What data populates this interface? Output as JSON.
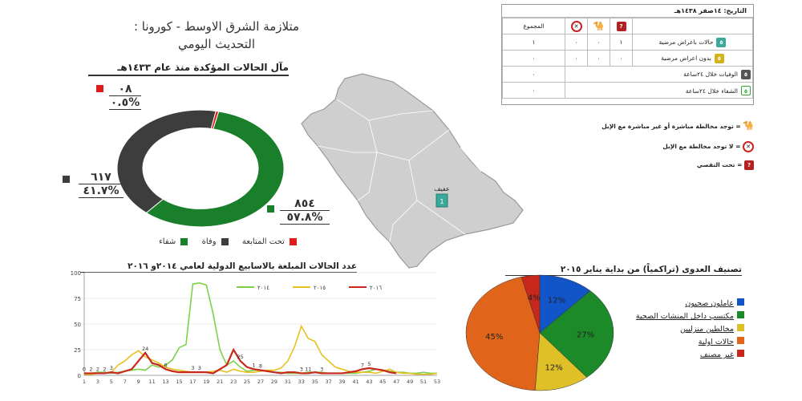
{
  "header": {
    "title_line1": "متلازمة الشرق الاوسط - كورونا :",
    "title_line2": "التحديث اليومي"
  },
  "donut": {
    "title": "مآل الحالات المؤكدة منذ عام ١٤٣٣هـ",
    "recovered": {
      "count": "٨٥٤",
      "percent": "٥٧.٨%",
      "color": "#1a7f2a"
    },
    "deaths": {
      "count": "٦١٧",
      "percent": "٤١.٧%",
      "color": "#3d3d3d"
    },
    "followup": {
      "count": "٠٨",
      "percent": "٠.٥%",
      "color": "#e01b1b"
    },
    "legend": [
      "شفاء",
      "وفاة",
      "تحت المتابعة"
    ]
  },
  "table": {
    "date_label": "التاريخ: ١٤صفر ١٤٣٨هـ",
    "total_header": "المجموع",
    "rows": [
      {
        "label": "حالات باعراض مرضية",
        "icon_color": "#3aa89b",
        "icon_text": "٥",
        "q": "١",
        "camel": "٠",
        "nocamel": "٠",
        "total": "١"
      },
      {
        "label": "بدون اعراض مرضية",
        "icon_color": "#d4b21a",
        "icon_text": "٥",
        "q": "٠",
        "camel": "٠",
        "nocamel": "٠",
        "total": "٠"
      },
      {
        "label": "الوفيات خلال ٢٤ساعة",
        "icon_color": "#555555",
        "icon_text": "٥",
        "total": "٠"
      },
      {
        "label": "الشفاء خلال ٢٤ساعة",
        "icon_color": "#ffffff",
        "icon_text": "٥",
        "total": "٠"
      }
    ]
  },
  "key": {
    "camel": "= توجد مخالطة مباشرة أو غير مباشرة مع الإبل",
    "nocamel": "= لا توجد مخالطة مع الإبل",
    "investigation": "= تحت التقصي"
  },
  "map": {
    "city_label": "عفيف",
    "city_count": "1"
  },
  "chart_data": [
    {
      "type": "donut",
      "title": "مآل الحالات المؤكدة منذ عام ١٤٣٣هـ",
      "categories": [
        "شفاء",
        "وفاة",
        "تحت المتابعة"
      ],
      "values": [
        854,
        617,
        8
      ],
      "percents": [
        57.8,
        41.7,
        0.5
      ],
      "colors": [
        "#1a7f2a",
        "#3d3d3d",
        "#e01b1b"
      ]
    },
    {
      "type": "line",
      "title": "عدد الحالات المبلغة بالاسابيع الدولية لعامي ٢٠١٤و ٢٠١٦",
      "ylim": [
        0,
        100
      ],
      "yticks": [
        0,
        25,
        50,
        75,
        100
      ],
      "xticks": [
        1,
        3,
        5,
        7,
        9,
        11,
        13,
        15,
        17,
        19,
        21,
        23,
        25,
        27,
        29,
        31,
        33,
        35,
        37,
        39,
        41,
        43,
        45,
        47,
        49,
        51,
        53
      ],
      "series": [
        {
          "name": "٢٠١٤",
          "color": "#7cd14a",
          "x": [
            1,
            2,
            3,
            4,
            5,
            6,
            7,
            8,
            9,
            10,
            11,
            12,
            13,
            14,
            15,
            16,
            17,
            18,
            19,
            20,
            21,
            22,
            23,
            24,
            25,
            26,
            27,
            28,
            29,
            30,
            31,
            32,
            33,
            34,
            35,
            36,
            37,
            38,
            39,
            40,
            41,
            42,
            43,
            44,
            45,
            46,
            47,
            48,
            49,
            50,
            51,
            52,
            53
          ],
          "values": [
            2,
            2,
            3,
            3,
            2,
            3,
            4,
            5,
            6,
            5,
            10,
            8,
            10,
            15,
            27,
            30,
            89,
            90,
            88,
            60,
            25,
            10,
            14,
            8,
            4,
            5,
            5,
            4,
            3,
            3,
            2,
            2,
            2,
            3,
            3,
            3,
            2,
            2,
            2,
            2,
            2,
            3,
            4,
            6,
            5,
            4,
            3,
            3,
            2,
            2,
            3,
            2,
            2
          ]
        },
        {
          "name": "٢٠١٥",
          "color": "#e8c020",
          "x": [
            1,
            2,
            3,
            4,
            5,
            6,
            7,
            8,
            9,
            10,
            11,
            12,
            13,
            14,
            15,
            16,
            17,
            18,
            19,
            20,
            21,
            22,
            23,
            24,
            25,
            26,
            27,
            28,
            29,
            30,
            31,
            32,
            33,
            34,
            35,
            36,
            37,
            38,
            39,
            40,
            41,
            42,
            43,
            44,
            45,
            46,
            47,
            48,
            49,
            50,
            51,
            52,
            53
          ],
          "values": [
            1,
            1,
            2,
            2,
            3,
            10,
            14,
            20,
            24,
            18,
            15,
            12,
            8,
            6,
            5,
            4,
            3,
            3,
            3,
            4,
            5,
            3,
            6,
            4,
            3,
            3,
            4,
            5,
            5,
            7,
            14,
            28,
            48,
            36,
            33,
            20,
            14,
            8,
            6,
            4,
            3,
            3,
            3,
            2,
            4,
            6,
            3,
            2,
            2,
            1,
            1,
            1,
            2
          ]
        },
        {
          "name": "٢٠١٦",
          "color": "#c8281c",
          "x": [
            1,
            2,
            3,
            4,
            5,
            6,
            7,
            8,
            9,
            10,
            11,
            12,
            13,
            14,
            15,
            16,
            17,
            18,
            19,
            20,
            21,
            22,
            23,
            24,
            25,
            26,
            27,
            28,
            29,
            30,
            31,
            32,
            33,
            34,
            35,
            36,
            37,
            38,
            39,
            40,
            41,
            42,
            43,
            44,
            45,
            46,
            47
          ],
          "values": [
            2,
            2,
            2,
            2,
            3,
            2,
            4,
            6,
            14,
            22,
            12,
            10,
            6,
            4,
            3,
            3,
            3,
            3,
            3,
            2,
            6,
            10,
            25,
            14,
            8,
            6,
            5,
            4,
            3,
            2,
            3,
            3,
            2,
            2,
            3,
            2,
            2,
            2,
            2,
            3,
            4,
            6,
            7,
            6,
            5,
            3,
            2
          ]
        }
      ],
      "data_labels": [
        {
          "x": 1,
          "text": "0"
        },
        {
          "x": 2,
          "text": "2"
        },
        {
          "x": 3,
          "text": "2"
        },
        {
          "x": 4,
          "text": "2"
        },
        {
          "x": 5,
          "text": "3"
        },
        {
          "x": 10,
          "text": "24"
        },
        {
          "x": 13,
          "text": "6"
        },
        {
          "x": 17,
          "text": "3"
        },
        {
          "x": 18,
          "text": "3"
        },
        {
          "x": 24,
          "text": "25"
        },
        {
          "x": 26,
          "text": "1"
        },
        {
          "x": 27,
          "text": "8"
        },
        {
          "x": 33,
          "text": "3"
        },
        {
          "x": 34,
          "text": "11"
        },
        {
          "x": 36,
          "text": "3"
        },
        {
          "x": 42,
          "text": "7"
        },
        {
          "x": 43,
          "text": "5"
        }
      ]
    },
    {
      "type": "pie",
      "title": "تصنيف العدوى (تراكمياً) من بداية يناير ٢٠١٥",
      "categories": [
        "عاملون صحيون",
        "مكتسب داخل المنشات الصحية",
        "مخالطين منزليين",
        "حالات اولية",
        "غير مصنف"
      ],
      "values": [
        12,
        27,
        12,
        45,
        4
      ],
      "colors": [
        "#1155c9",
        "#1d8a2a",
        "#e0c027",
        "#e0651a",
        "#c8281c"
      ]
    }
  ]
}
